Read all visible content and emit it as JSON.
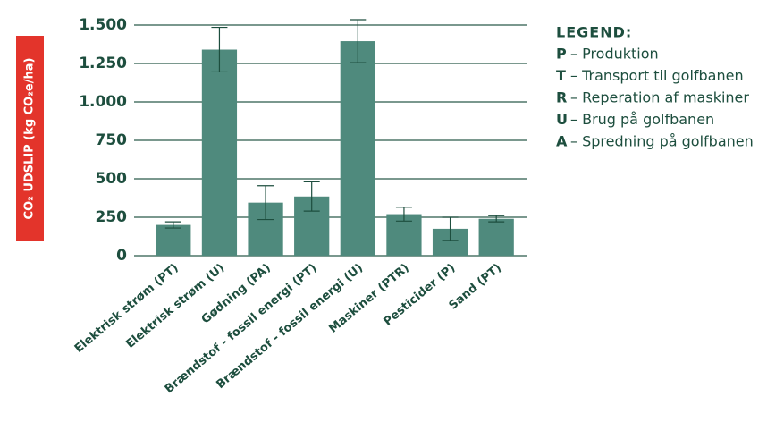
{
  "chart_data": {
    "type": "bar",
    "y_label": "CO₂ UDSLIP (kg CO₂e/ha)",
    "categories": [
      "Elektrisk strøm (PT)",
      "Elektrisk strøm (U)",
      "Gødning (PA)",
      "Brændstof - fossil energi (PT)",
      "Brændstof - fossil energi (U)",
      "Maskiner (PTR)",
      "Pesticider (P)",
      "Sand (PT)"
    ],
    "values": [
      200,
      1340,
      345,
      385,
      1395,
      270,
      175,
      240
    ],
    "errors": [
      20,
      145,
      110,
      95,
      140,
      45,
      75,
      20
    ],
    "color": "#4f8a7d",
    "ylim": [
      0,
      1500
    ],
    "yticks": [
      0,
      250,
      500,
      750,
      {
        "value": 1000,
        "label": "1.000"
      },
      {
        "value": 1250,
        "label": "1.250"
      },
      {
        "value": 1500,
        "label": "1.500"
      }
    ],
    "grid": true,
    "legend": {
      "title": "LEGEND:",
      "items": [
        {
          "key": "P",
          "text": "– Produktion"
        },
        {
          "key": "T",
          "text": "– Transport til golfbanen"
        },
        {
          "key": "R",
          "text": "– Reperation af maskiner"
        },
        {
          "key": "U",
          "text": "– Brug på golfbanen"
        },
        {
          "key": "A",
          "text": "– Spredning på golfbanen"
        }
      ]
    }
  }
}
